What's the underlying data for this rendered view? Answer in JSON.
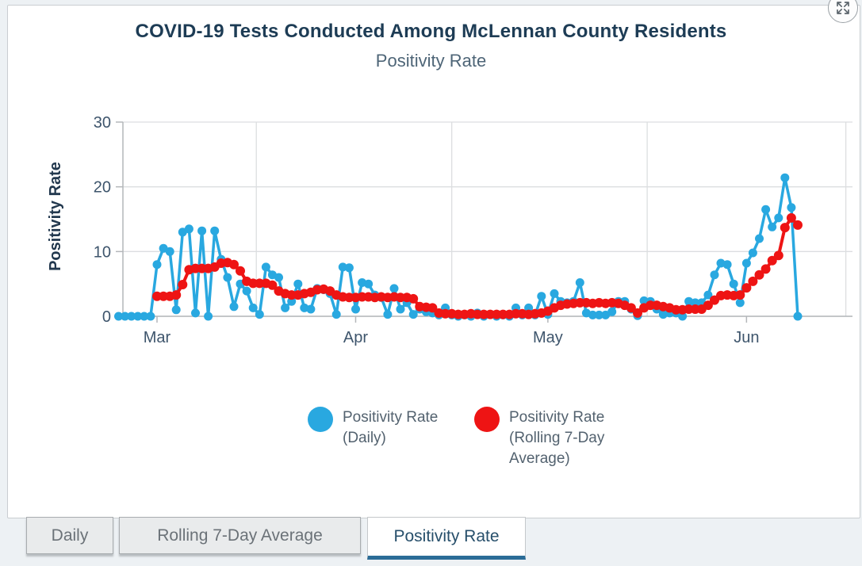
{
  "header": {
    "title": "COVID-19 Tests Conducted Among McLennan County Residents",
    "subtitle": "Positivity Rate"
  },
  "theme": {
    "accent": "#2b6c97",
    "daily_series_color": "#29a8e0",
    "rolling_series_color": "#ee1414"
  },
  "chart_data": {
    "type": "line",
    "title": "Positivity Rate",
    "xlabel": "",
    "ylabel": "Positivity Rate",
    "ylim": [
      0,
      30
    ],
    "yticks": [
      0,
      10,
      20,
      30
    ],
    "grid": {
      "horizontal": true,
      "vertical": "mid-month"
    },
    "legend_position": "bottom",
    "x_unit": "day",
    "x_start": "Feb 24",
    "x_end": "Jun 9",
    "xticks": [
      {
        "label": "Mar",
        "day": 6
      },
      {
        "label": "Apr",
        "day": 37
      },
      {
        "label": "May",
        "day": 67
      },
      {
        "label": "Jun",
        "day": 98
      }
    ],
    "series": [
      {
        "name": "Positivity Rate (Daily)",
        "color": "#29a8e0",
        "values": [
          0,
          0,
          0,
          0,
          0,
          0,
          8,
          10.5,
          10,
          1,
          13,
          13.5,
          0.5,
          13.2,
          0,
          13.2,
          8.8,
          6,
          1.5,
          5,
          3.9,
          1.3,
          0.3,
          7.6,
          6.4,
          6,
          1.3,
          2.3,
          5,
          1.3,
          1.1,
          4.3,
          4.1,
          3.5,
          0.3,
          7.6,
          7.5,
          1.1,
          5.2,
          5,
          3.3,
          2.9,
          0.3,
          4.3,
          1.1,
          2.1,
          0.3,
          1.1,
          0.7,
          0.5,
          0.2,
          1.3,
          0.2,
          0,
          0.2,
          0,
          0.5,
          0,
          0.3,
          0,
          0.2,
          0,
          1.3,
          0.2,
          1.3,
          0.2,
          3.1,
          0.3,
          3.5,
          2.3,
          2.1,
          2.3,
          5.2,
          0.5,
          0.2,
          0.2,
          0.2,
          0.7,
          2.3,
          2.3,
          1.1,
          0.1,
          2.4,
          2.3,
          1.1,
          0.3,
          0.5,
          0.5,
          0,
          2.3,
          2.1,
          2.1,
          3.3,
          6.4,
          8.2,
          8,
          5,
          2.1,
          8.2,
          9.8,
          12,
          16.5,
          13.8,
          15.2,
          21.4,
          16.8,
          0
        ]
      },
      {
        "name": "Positivity Rate (Rolling 7-Day Average)",
        "color": "#ee1414",
        "values": [
          null,
          null,
          null,
          null,
          null,
          null,
          3.1,
          3.1,
          3.1,
          3.3,
          4.9,
          7.2,
          7.4,
          7.4,
          7.4,
          7.6,
          8.2,
          8.3,
          8,
          7,
          5.4,
          5.1,
          5.1,
          5.1,
          4.8,
          3.9,
          3.5,
          3.3,
          3.3,
          3.5,
          3.7,
          4.1,
          4.2,
          3.9,
          3.3,
          3,
          2.9,
          2.9,
          3,
          3,
          2.9,
          3,
          2.9,
          3,
          2.9,
          2.9,
          2.7,
          1.5,
          1.4,
          1.3,
          0.5,
          0.4,
          0.4,
          0.3,
          0.3,
          0.4,
          0.3,
          0.3,
          0.3,
          0.3,
          0.3,
          0.3,
          0.4,
          0.4,
          0.3,
          0.4,
          0.5,
          0.8,
          1.3,
          1.7,
          1.9,
          2,
          2.1,
          2.1,
          2,
          2.1,
          2,
          2.1,
          2,
          1.7,
          1.3,
          0.5,
          1.3,
          1.7,
          1.7,
          1.5,
          1.3,
          1,
          1,
          1.1,
          1.1,
          1.1,
          1.7,
          2.5,
          3.2,
          3.3,
          3.2,
          3.3,
          4.4,
          5.4,
          6.4,
          7.3,
          8.6,
          9.4,
          13.7,
          15.2,
          14.1
        ]
      }
    ]
  },
  "legend": {
    "daily": {
      "line1": "Positivity Rate",
      "line2": "(Daily)"
    },
    "rolling": {
      "line1": "Positivity Rate",
      "line2": "(Rolling 7-Day",
      "line3": "Average)"
    }
  },
  "tabs": [
    {
      "label": "Daily",
      "active": false
    },
    {
      "label": "Rolling 7-Day Average",
      "active": false
    },
    {
      "label": "Positivity Rate",
      "active": true
    }
  ]
}
